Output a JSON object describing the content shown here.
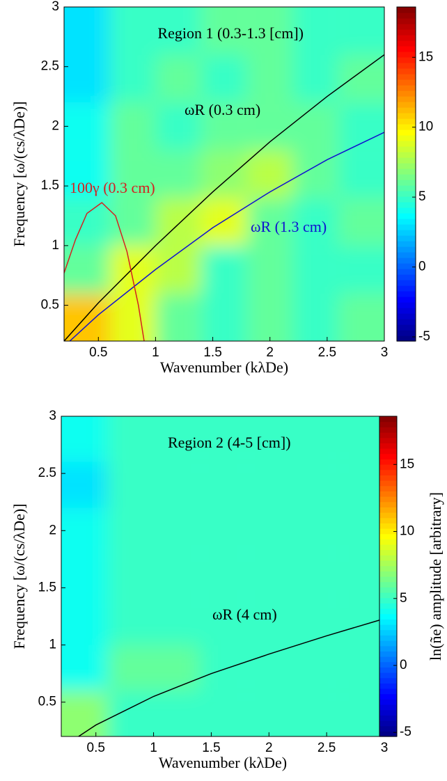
{
  "chart_data": [
    {
      "type": "heatmap",
      "title": "Region 1 (0.3-1.3 [cm])",
      "x_label": "Wavenumber (kλDe)",
      "y_label": "Frequency [ω/(cs/λDe)]",
      "xlim": [
        0.2,
        3
      ],
      "ylim": [
        0.2,
        3
      ],
      "xticks": [
        0.5,
        1,
        1.5,
        2,
        2.5,
        3
      ],
      "yticks": [
        0.5,
        1,
        1.5,
        2,
        2.5,
        3
      ],
      "clim": [
        -5.3,
        18.6
      ],
      "cticks": [
        -5,
        0,
        5,
        10,
        15
      ],
      "colormap": "jet",
      "x": [
        0.4,
        0.8,
        1.2,
        1.6,
        2.0,
        2.4,
        2.8
      ],
      "y": [
        0.4,
        0.8,
        1.2,
        1.6,
        2.0,
        2.4,
        2.8
      ],
      "z": [
        [
          11,
          9,
          6,
          5,
          6,
          5,
          6
        ],
        [
          6,
          9,
          8,
          5,
          6,
          5,
          5
        ],
        [
          5,
          6,
          8,
          9,
          6,
          5,
          6
        ],
        [
          4,
          6,
          6,
          7,
          8,
          6,
          5
        ],
        [
          4,
          6,
          5,
          6,
          6,
          6,
          5
        ],
        [
          3,
          5,
          6,
          5,
          6,
          5,
          6
        ],
        [
          3,
          5,
          5,
          6,
          6,
          5,
          5
        ]
      ],
      "series": [
        {
          "name": "ωR (0.3 cm)",
          "color": "#000000",
          "x": [
            0.2,
            0.5,
            1,
            1.5,
            2,
            2.5,
            3
          ],
          "values": [
            0.2,
            0.52,
            1.0,
            1.45,
            1.87,
            2.25,
            2.6
          ]
        },
        {
          "name": "ωR (1.3 cm)",
          "color": "#1010d0",
          "x": [
            0.25,
            0.5,
            1,
            1.5,
            2,
            2.5,
            3
          ],
          "values": [
            0.2,
            0.42,
            0.8,
            1.15,
            1.45,
            1.72,
            1.95
          ]
        },
        {
          "name": "100γ (0.3 cm)",
          "color": "#d42020",
          "x": [
            0.2,
            0.3,
            0.4,
            0.53,
            0.65,
            0.75,
            0.85,
            0.9
          ],
          "values": [
            0.77,
            1.05,
            1.27,
            1.36,
            1.25,
            0.95,
            0.5,
            0.2
          ]
        }
      ]
    },
    {
      "type": "heatmap",
      "title": "Region 2 (4-5 [cm])",
      "x_label": "Wavenumber (kλDe)",
      "y_label": "Frequency [ω/(cs/λDe)]",
      "colorbar_label": "ln(ñe) amplitude [arbitrary]",
      "xlim": [
        0.2,
        3
      ],
      "ylim": [
        0.2,
        3
      ],
      "xticks": [
        0.5,
        1,
        1.5,
        2,
        2.5,
        3
      ],
      "yticks": [
        0.5,
        1,
        1.5,
        2,
        2.5,
        3
      ],
      "clim": [
        -5.3,
        18.6
      ],
      "cticks": [
        -5,
        0,
        5,
        10,
        15
      ],
      "colormap": "jet",
      "x": [
        0.4,
        0.8,
        1.2,
        1.6,
        2.0,
        2.4,
        2.8
      ],
      "y": [
        0.4,
        0.8,
        1.2,
        1.6,
        2.0,
        2.4,
        2.8
      ],
      "z": [
        [
          7,
          5,
          5,
          5,
          5,
          5,
          5
        ],
        [
          4,
          6,
          6,
          5,
          5,
          5,
          5
        ],
        [
          4,
          5,
          5,
          5,
          5,
          5,
          5
        ],
        [
          4,
          5,
          5,
          5,
          5,
          5,
          5
        ],
        [
          4,
          5,
          5,
          5,
          5,
          5,
          5
        ],
        [
          3,
          5,
          5,
          5,
          5,
          5,
          5
        ],
        [
          4,
          5,
          5,
          5,
          5,
          5,
          5
        ]
      ],
      "series": [
        {
          "name": "ωR (4 cm)",
          "color": "#000000",
          "x": [
            0.35,
            0.5,
            1,
            1.5,
            2,
            2.5,
            3
          ],
          "values": [
            0.2,
            0.3,
            0.55,
            0.75,
            0.92,
            1.08,
            1.23
          ]
        }
      ]
    }
  ]
}
